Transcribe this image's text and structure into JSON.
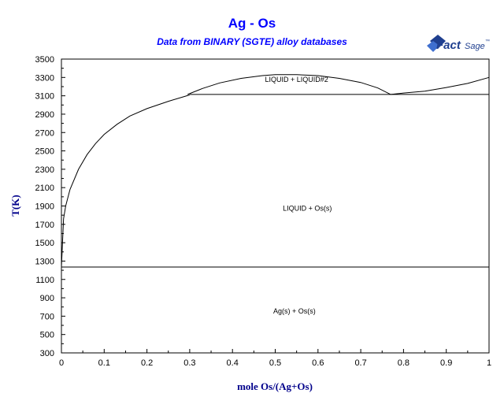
{
  "chart_data": {
    "type": "line",
    "title": "Ag - Os",
    "subtitle": "Data from BINARY (SGTE) alloy databases",
    "xlabel": "mole Os/(Ag+Os)",
    "ylabel": "T(K)",
    "xlim": [
      0,
      1
    ],
    "ylim": [
      300,
      3500
    ],
    "x_ticks": [
      "0",
      "0.1",
      "0.2",
      "0.3",
      "0.4",
      "0.5",
      "0.6",
      "0.7",
      "0.8",
      "0.9",
      "1"
    ],
    "y_ticks": [
      "300",
      "500",
      "700",
      "900",
      "1100",
      "1300",
      "1500",
      "1700",
      "1900",
      "2100",
      "2300",
      "2500",
      "2700",
      "2900",
      "3100",
      "3300",
      "3500"
    ],
    "grid": false,
    "series": [
      {
        "points": [
          [
            0,
            1235
          ],
          [
            0.005,
            1760
          ],
          [
            0.01,
            1900
          ],
          [
            0.02,
            2080
          ],
          [
            0.04,
            2300
          ],
          [
            0.06,
            2460
          ],
          [
            0.08,
            2580
          ],
          [
            0.1,
            2680
          ],
          [
            0.13,
            2790
          ],
          [
            0.16,
            2880
          ],
          [
            0.2,
            2960
          ],
          [
            0.25,
            3040
          ],
          [
            0.3,
            3110
          ]
        ]
      },
      {
        "points": [
          [
            0.295,
            3115
          ],
          [
            0.33,
            3180
          ],
          [
            0.37,
            3240
          ],
          [
            0.42,
            3290
          ],
          [
            0.47,
            3320
          ],
          [
            0.5,
            3330
          ],
          [
            0.55,
            3330
          ],
          [
            0.6,
            3320
          ],
          [
            0.65,
            3290
          ],
          [
            0.7,
            3245
          ],
          [
            0.74,
            3185
          ],
          [
            0.77,
            3115
          ]
        ]
      },
      {
        "points": [
          [
            0.77,
            3115
          ],
          [
            0.8,
            3130
          ],
          [
            0.85,
            3150
          ],
          [
            0.9,
            3190
          ],
          [
            0.95,
            3235
          ],
          [
            1.0,
            3300
          ]
        ]
      },
      {
        "points": [
          [
            0.3,
            3115
          ],
          [
            1.0,
            3115
          ]
        ]
      },
      {
        "points": [
          [
            0,
            1235
          ],
          [
            1.0,
            1235
          ]
        ]
      }
    ],
    "annotations": [
      {
        "text": "LIQUID + LIQUID#2",
        "x": 0.55,
        "y": 3250
      },
      {
        "text": "LIQUID + Os(s)",
        "x": 0.575,
        "y": 1850
      },
      {
        "text": "Ag(s) + Os(s)",
        "x": 0.545,
        "y": 730
      }
    ],
    "logo_text": "FactSage"
  }
}
